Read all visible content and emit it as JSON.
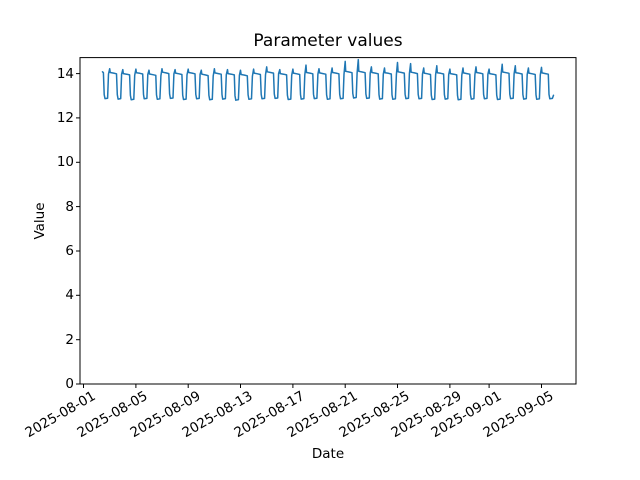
{
  "chart_data": {
    "type": "line",
    "title": "Parameter values",
    "xlabel": "Date",
    "ylabel": "Value",
    "grid": false,
    "legend": null,
    "line_color": "#1f77b4",
    "axes_background": "#ffffff",
    "figure_background": "#ffffff",
    "spine_color": "#000000",
    "ylim": [
      0,
      14.72
    ],
    "y_ticks": [
      0,
      2,
      4,
      6,
      8,
      10,
      12,
      14
    ],
    "x_epoch_date": "2025-08-01",
    "xlim_days": [
      -0.27,
      37.64
    ],
    "x_ticks": [
      {
        "day": 0,
        "label": "2025-08-01"
      },
      {
        "day": 4,
        "label": "2025-08-05"
      },
      {
        "day": 8,
        "label": "2025-08-09"
      },
      {
        "day": 12,
        "label": "2025-08-13"
      },
      {
        "day": 16,
        "label": "2025-08-17"
      },
      {
        "day": 20,
        "label": "2025-08-21"
      },
      {
        "day": 24,
        "label": "2025-08-25"
      },
      {
        "day": 28,
        "label": "2025-08-29"
      },
      {
        "day": 31,
        "label": "2025-09-01"
      },
      {
        "day": 35,
        "label": "2025-09-05"
      }
    ],
    "series": [
      {
        "name": "Parameter",
        "color": "#1f77b4",
        "points": [
          [
            1.45,
            14.08
          ],
          [
            1.52,
            14.04
          ],
          [
            1.58,
            13.05
          ],
          [
            1.64,
            12.87
          ],
          [
            1.84,
            12.89
          ],
          [
            1.91,
            13.98
          ],
          [
            2.0,
            14.22
          ],
          [
            2.04,
            14.05
          ],
          [
            2.3,
            14.02
          ],
          [
            2.52,
            13.99
          ],
          [
            2.58,
            13.05
          ],
          [
            2.64,
            12.85
          ],
          [
            2.84,
            12.87
          ],
          [
            2.91,
            13.97
          ],
          [
            3.0,
            14.18
          ],
          [
            3.04,
            14.0
          ],
          [
            3.3,
            13.97
          ],
          [
            3.52,
            13.94
          ],
          [
            3.58,
            13.02
          ],
          [
            3.64,
            12.82
          ],
          [
            3.84,
            12.84
          ],
          [
            3.91,
            13.92
          ],
          [
            4.0,
            14.2
          ],
          [
            4.04,
            14.04
          ],
          [
            4.3,
            14.01
          ],
          [
            4.52,
            13.98
          ],
          [
            4.58,
            13.06
          ],
          [
            4.64,
            12.86
          ],
          [
            4.84,
            12.88
          ],
          [
            4.91,
            13.96
          ],
          [
            5.0,
            14.15
          ],
          [
            5.04,
            13.98
          ],
          [
            5.3,
            13.95
          ],
          [
            5.52,
            13.92
          ],
          [
            5.58,
            13.04
          ],
          [
            5.64,
            12.84
          ],
          [
            5.84,
            12.86
          ],
          [
            5.91,
            13.9
          ],
          [
            6.0,
            14.22
          ],
          [
            6.04,
            14.06
          ],
          [
            6.3,
            14.03
          ],
          [
            6.52,
            14.0
          ],
          [
            6.58,
            13.08
          ],
          [
            6.64,
            12.88
          ],
          [
            6.84,
            12.9
          ],
          [
            6.91,
            13.98
          ],
          [
            7.0,
            14.18
          ],
          [
            7.04,
            14.02
          ],
          [
            7.3,
            13.99
          ],
          [
            7.52,
            13.96
          ],
          [
            7.58,
            13.03
          ],
          [
            7.64,
            12.83
          ],
          [
            7.84,
            12.85
          ],
          [
            7.91,
            13.94
          ],
          [
            8.0,
            14.2
          ],
          [
            8.04,
            14.05
          ],
          [
            8.3,
            14.02
          ],
          [
            8.52,
            13.99
          ],
          [
            8.58,
            13.06
          ],
          [
            8.64,
            12.86
          ],
          [
            8.84,
            12.88
          ],
          [
            8.91,
            13.97
          ],
          [
            9.0,
            14.15
          ],
          [
            9.04,
            13.97
          ],
          [
            9.3,
            13.94
          ],
          [
            9.52,
            13.91
          ],
          [
            9.58,
            13.02
          ],
          [
            9.64,
            12.82
          ],
          [
            9.84,
            12.84
          ],
          [
            9.91,
            13.89
          ],
          [
            10.0,
            14.22
          ],
          [
            10.04,
            14.03
          ],
          [
            10.3,
            14.0
          ],
          [
            10.52,
            13.97
          ],
          [
            10.58,
            13.05
          ],
          [
            10.64,
            12.85
          ],
          [
            10.84,
            12.87
          ],
          [
            10.91,
            13.95
          ],
          [
            11.0,
            14.18
          ],
          [
            11.04,
            14.0
          ],
          [
            11.3,
            13.97
          ],
          [
            11.52,
            13.94
          ],
          [
            11.58,
            13.0
          ],
          [
            11.64,
            12.8
          ],
          [
            11.84,
            12.82
          ],
          [
            11.91,
            13.92
          ],
          [
            12.0,
            14.15
          ],
          [
            12.04,
            13.96
          ],
          [
            12.3,
            13.93
          ],
          [
            12.52,
            13.9
          ],
          [
            12.58,
            13.04
          ],
          [
            12.64,
            12.84
          ],
          [
            12.84,
            12.86
          ],
          [
            12.91,
            13.88
          ],
          [
            13.0,
            14.2
          ],
          [
            13.04,
            14.02
          ],
          [
            13.3,
            13.99
          ],
          [
            13.52,
            13.96
          ],
          [
            13.58,
            13.06
          ],
          [
            13.64,
            12.86
          ],
          [
            13.84,
            12.88
          ],
          [
            13.91,
            13.94
          ],
          [
            14.0,
            14.3
          ],
          [
            14.04,
            14.08
          ],
          [
            14.3,
            14.05
          ],
          [
            14.52,
            14.02
          ],
          [
            14.58,
            13.08
          ],
          [
            14.64,
            12.88
          ],
          [
            14.84,
            12.9
          ],
          [
            14.91,
            14.0
          ],
          [
            15.0,
            14.18
          ],
          [
            15.04,
            14.0
          ],
          [
            15.3,
            13.97
          ],
          [
            15.52,
            13.94
          ],
          [
            15.58,
            13.03
          ],
          [
            15.64,
            12.83
          ],
          [
            15.84,
            12.85
          ],
          [
            15.91,
            13.92
          ],
          [
            16.0,
            14.2
          ],
          [
            16.04,
            14.02
          ],
          [
            16.3,
            13.99
          ],
          [
            16.52,
            13.96
          ],
          [
            16.58,
            13.05
          ],
          [
            16.64,
            12.85
          ],
          [
            16.84,
            12.87
          ],
          [
            16.91,
            13.94
          ],
          [
            17.0,
            14.38
          ],
          [
            17.04,
            14.05
          ],
          [
            17.3,
            14.02
          ],
          [
            17.52,
            13.99
          ],
          [
            17.58,
            13.07
          ],
          [
            17.64,
            12.87
          ],
          [
            17.84,
            12.89
          ],
          [
            17.91,
            13.97
          ],
          [
            18.0,
            14.22
          ],
          [
            18.04,
            14.03
          ],
          [
            18.3,
            14.0
          ],
          [
            18.52,
            13.97
          ],
          [
            18.58,
            13.04
          ],
          [
            18.64,
            12.84
          ],
          [
            18.84,
            12.86
          ],
          [
            18.91,
            13.95
          ],
          [
            19.0,
            14.25
          ],
          [
            19.04,
            14.05
          ],
          [
            19.3,
            14.02
          ],
          [
            19.52,
            13.99
          ],
          [
            19.58,
            13.06
          ],
          [
            19.64,
            12.86
          ],
          [
            19.84,
            12.88
          ],
          [
            19.91,
            13.97
          ],
          [
            20.0,
            14.55
          ],
          [
            20.04,
            14.1
          ],
          [
            20.3,
            14.07
          ],
          [
            20.52,
            14.04
          ],
          [
            20.58,
            13.1
          ],
          [
            20.64,
            12.9
          ],
          [
            20.84,
            12.92
          ],
          [
            20.91,
            14.02
          ],
          [
            21.0,
            14.63
          ],
          [
            21.04,
            14.1
          ],
          [
            21.3,
            14.07
          ],
          [
            21.52,
            14.04
          ],
          [
            21.58,
            13.08
          ],
          [
            21.64,
            12.88
          ],
          [
            21.84,
            12.9
          ],
          [
            21.91,
            14.02
          ],
          [
            22.0,
            14.3
          ],
          [
            22.04,
            14.05
          ],
          [
            22.3,
            14.02
          ],
          [
            22.52,
            13.99
          ],
          [
            22.58,
            13.05
          ],
          [
            22.64,
            12.85
          ],
          [
            22.84,
            12.87
          ],
          [
            22.91,
            13.97
          ],
          [
            23.0,
            14.25
          ],
          [
            23.04,
            14.04
          ],
          [
            23.3,
            14.01
          ],
          [
            23.52,
            13.98
          ],
          [
            23.58,
            13.04
          ],
          [
            23.64,
            12.84
          ],
          [
            23.84,
            12.86
          ],
          [
            23.91,
            13.96
          ],
          [
            24.0,
            14.5
          ],
          [
            24.04,
            14.08
          ],
          [
            24.3,
            14.05
          ],
          [
            24.52,
            14.02
          ],
          [
            24.58,
            13.07
          ],
          [
            24.64,
            12.87
          ],
          [
            24.84,
            12.89
          ],
          [
            24.91,
            14.0
          ],
          [
            25.0,
            14.45
          ],
          [
            25.04,
            14.06
          ],
          [
            25.3,
            14.03
          ],
          [
            25.52,
            14.0
          ],
          [
            25.58,
            13.06
          ],
          [
            25.64,
            12.86
          ],
          [
            25.84,
            12.88
          ],
          [
            25.91,
            13.98
          ],
          [
            26.0,
            14.25
          ],
          [
            26.04,
            14.02
          ],
          [
            26.3,
            13.99
          ],
          [
            26.52,
            13.96
          ],
          [
            26.58,
            13.03
          ],
          [
            26.64,
            12.83
          ],
          [
            26.84,
            12.85
          ],
          [
            26.91,
            13.94
          ],
          [
            27.0,
            14.35
          ],
          [
            27.04,
            14.04
          ],
          [
            27.3,
            14.01
          ],
          [
            27.52,
            13.98
          ],
          [
            27.58,
            13.05
          ],
          [
            27.64,
            12.85
          ],
          [
            27.84,
            12.87
          ],
          [
            27.91,
            13.96
          ],
          [
            28.0,
            14.2
          ],
          [
            28.04,
            14.0
          ],
          [
            28.3,
            13.97
          ],
          [
            28.52,
            13.94
          ],
          [
            28.58,
            13.02
          ],
          [
            28.64,
            12.82
          ],
          [
            28.84,
            12.84
          ],
          [
            28.91,
            13.92
          ],
          [
            29.0,
            14.25
          ],
          [
            29.04,
            14.03
          ],
          [
            29.3,
            14.0
          ],
          [
            29.52,
            13.97
          ],
          [
            29.58,
            13.05
          ],
          [
            29.64,
            12.85
          ],
          [
            29.84,
            12.87
          ],
          [
            29.91,
            13.95
          ],
          [
            30.0,
            14.3
          ],
          [
            30.04,
            14.05
          ],
          [
            30.3,
            14.02
          ],
          [
            30.52,
            13.99
          ],
          [
            30.58,
            13.06
          ],
          [
            30.64,
            12.86
          ],
          [
            30.84,
            12.88
          ],
          [
            30.91,
            13.97
          ],
          [
            31.0,
            14.2
          ],
          [
            31.04,
            14.0
          ],
          [
            31.3,
            13.97
          ],
          [
            31.52,
            13.94
          ],
          [
            31.58,
            13.03
          ],
          [
            31.64,
            12.83
          ],
          [
            31.84,
            12.85
          ],
          [
            31.91,
            13.92
          ],
          [
            32.0,
            14.42
          ],
          [
            32.04,
            14.07
          ],
          [
            32.3,
            14.04
          ],
          [
            32.52,
            14.01
          ],
          [
            32.58,
            13.07
          ],
          [
            32.64,
            12.87
          ],
          [
            32.84,
            12.89
          ],
          [
            32.91,
            13.99
          ],
          [
            33.0,
            14.35
          ],
          [
            33.04,
            14.04
          ],
          [
            33.3,
            14.01
          ],
          [
            33.52,
            13.98
          ],
          [
            33.58,
            13.05
          ],
          [
            33.64,
            12.85
          ],
          [
            33.84,
            12.87
          ],
          [
            33.91,
            13.96
          ],
          [
            34.0,
            14.25
          ],
          [
            34.04,
            14.02
          ],
          [
            34.3,
            13.99
          ],
          [
            34.52,
            13.96
          ],
          [
            34.58,
            13.04
          ],
          [
            34.64,
            12.84
          ],
          [
            34.84,
            12.86
          ],
          [
            34.91,
            13.94
          ],
          [
            35.0,
            14.28
          ],
          [
            35.04,
            14.03
          ],
          [
            35.3,
            14.0
          ],
          [
            35.52,
            13.97
          ],
          [
            35.58,
            13.06
          ],
          [
            35.64,
            12.86
          ],
          [
            35.84,
            12.88
          ],
          [
            35.92,
            13.02
          ]
        ]
      }
    ]
  }
}
